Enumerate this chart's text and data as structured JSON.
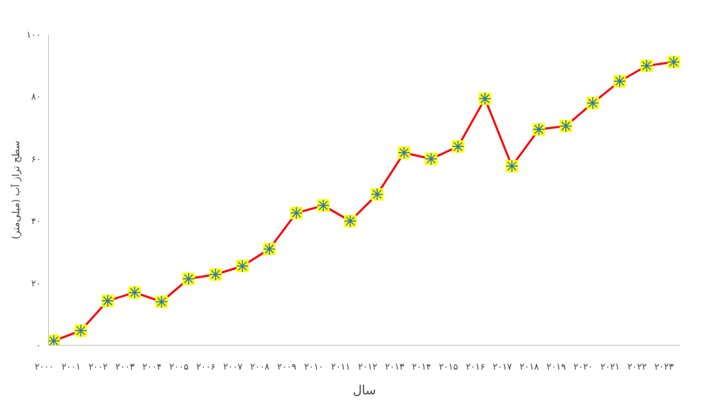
{
  "chart_data": {
    "type": "line",
    "xlabel": "سال",
    "ylabel": "سطح تراز آب (میلی‌متر)",
    "categories": [
      "۲۰۰۰",
      "۲۰۰۱",
      "۲۰۰۲",
      "۲۰۰۳",
      "۲۰۰۴",
      "۲۰۰۵",
      "۲۰۰۶",
      "۲۰۰۷",
      "۲۰۰۸",
      "۲۰۰۹",
      "۲۰۱۰",
      "۲۰۱۱",
      "۲۰۱۲",
      "۲۰۱۳",
      "۲۰۱۴",
      "۲۰۱۵",
      "۲۰۱۶",
      "۲۰۱۷",
      "۲۰۱۸",
      "۲۰۱۹",
      "۲۰۲۰",
      "۲۰۲۱",
      "۲۰۲۲",
      "۲۰۲۳"
    ],
    "series": [
      {
        "color": "#ff0000",
        "values": [
          1.4,
          4.7,
          14.3,
          17,
          14,
          21.4,
          22.8,
          25.5,
          31,
          42.6,
          45,
          40,
          48.6,
          62,
          60,
          64,
          79.4,
          57.7,
          69.5,
          70.6,
          78,
          85,
          90,
          91.2
        ]
      }
    ],
    "ylim": [
      0,
      100
    ],
    "yticks": [
      {
        "value": 0,
        "label": "۰"
      },
      {
        "value": 20,
        "label": "۲۰"
      },
      {
        "value": 40,
        "label": "۴۰"
      },
      {
        "value": 60,
        "label": "۶۰"
      },
      {
        "value": 80,
        "label": "۸۰"
      },
      {
        "value": 100,
        "label": "۱۰۰"
      }
    ],
    "grid": false,
    "marker": "square",
    "line_style": "solid"
  }
}
